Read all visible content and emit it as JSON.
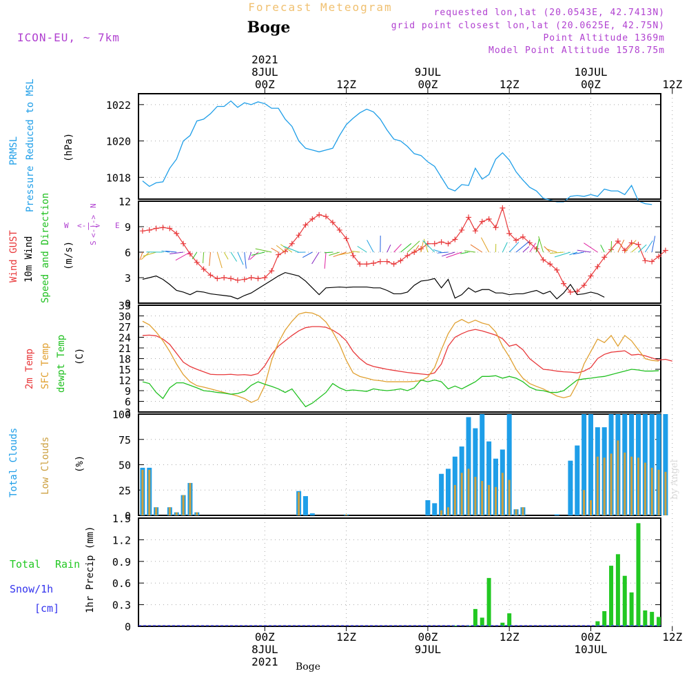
{
  "header": {
    "title": "Forecast Meteogram",
    "location": "Boge",
    "model": "ICON-EU, ~ 7km",
    "requested": "requested lon,lat (20.0543E, 42.7413N)",
    "grid_point": "grid point closest lon,lat (20.0625E, 42.75N)",
    "point_altitude": "Point Altitude 1369m",
    "model_altitude": "Model Point Altitude 1578.75m",
    "footer_location": "Boge",
    "watermark": "by Angel"
  },
  "time_axis": {
    "top_labels": [
      {
        "day": "8JUL",
        "hour": "00Z",
        "year": "2021",
        "t": 18
      },
      {
        "day": "",
        "hour": "12Z",
        "year": "",
        "t": 30
      },
      {
        "day": "9JUL",
        "hour": "00Z",
        "year": "",
        "t": 42
      },
      {
        "day": "",
        "hour": "12Z",
        "year": "",
        "t": 54
      },
      {
        "day": "10JUL",
        "hour": "00Z",
        "year": "",
        "t": 66
      },
      {
        "day": "",
        "hour": "12Z",
        "year": "",
        "t": 78
      }
    ],
    "bottom_labels": [
      {
        "hour": "00Z",
        "day": "8JUL",
        "year": "2021",
        "t": 18
      },
      {
        "hour": "12Z",
        "day": "",
        "year": "",
        "t": 30
      },
      {
        "hour": "00Z",
        "day": "9JUL",
        "year": "",
        "t": 42
      },
      {
        "hour": "12Z",
        "day": "",
        "year": "",
        "t": 54
      },
      {
        "hour": "00Z",
        "day": "10JUL",
        "year": "",
        "t": 66
      },
      {
        "hour": "12Z",
        "day": "",
        "year": "",
        "t": 78
      }
    ]
  },
  "panel_labels": {
    "pressure": {
      "l1": "PRMSL",
      "l2": "Pressure Reduced to MSL",
      "unit": "(hPa)"
    },
    "wind": {
      "l1": "Wind GUST",
      "l2": "10m Wind",
      "l3": "Speed and Direction",
      "unit": "(m/s)",
      "compass": {
        "n": "N",
        "s": "S",
        "w": "W",
        "e": "E",
        "arrow": "<-|->"
      }
    },
    "temp": {
      "l1": "2m Temp",
      "l2": "SFC Temp",
      "l3": "dewpt Temp",
      "unit": "(C)"
    },
    "clouds": {
      "l1": "Total Clouds",
      "l2": "Low Clouds",
      "unit": "(%)"
    },
    "precip": {
      "l1": "Total",
      "l1b": "Rain",
      "l2": "Snow/1h",
      "l3": "[cm]",
      "unit": "1hr Precip (mm)"
    }
  },
  "colors": {
    "pressure": "#1e9ee8",
    "gust": "#e8383a",
    "wind": "#000000",
    "temp2m": "#e8383a",
    "sfc": "#e0a030",
    "dew": "#20c020",
    "total_cloud": "#1e9ee8",
    "low_cloud": "#cca040",
    "rain": "#22c822",
    "snow": "#3333ee",
    "title": "#f0c070",
    "info": "#b040d0",
    "grid": "#a8a8a8"
  },
  "chart_data": [
    {
      "type": "line",
      "title": "PRMSL Pressure Reduced to MSL",
      "ylabel": "(hPa)",
      "ylim": [
        1016.8,
        1022.6
      ],
      "yticks": [
        1018,
        1020,
        1022
      ],
      "x_step_hours": 1,
      "x_start_hour": 0,
      "series": [
        {
          "name": "PRMSL",
          "values": [
            1017.8,
            1017.5,
            1017.7,
            1017.75,
            1018.5,
            1019.0,
            1020.0,
            1020.3,
            1021.1,
            1021.2,
            1021.5,
            1021.9,
            1021.9,
            1022.2,
            1021.85,
            1022.1,
            1022.0,
            1022.15,
            1022.05,
            1021.8,
            1021.8,
            1021.2,
            1020.8,
            1020.0,
            1019.6,
            1019.5,
            1019.4,
            1019.5,
            1019.6,
            1020.3,
            1020.9,
            1021.25,
            1021.55,
            1021.75,
            1021.6,
            1021.2,
            1020.6,
            1020.1,
            1020.0,
            1019.7,
            1019.3,
            1019.2,
            1018.85,
            1018.6,
            1018.0,
            1017.4,
            1017.25,
            1017.6,
            1017.55,
            1018.5,
            1017.9,
            1018.15,
            1019.0,
            1019.35,
            1018.95,
            1018.3,
            1017.85,
            1017.45,
            1017.25,
            1016.85,
            1016.75,
            1016.65,
            1016.65,
            1016.95,
            1017.0,
            1016.95,
            1017.05,
            1016.95,
            1017.35,
            1017.25,
            1017.25,
            1017.05,
            1017.55,
            1016.7,
            1016.55,
            1016.5
          ]
        }
      ]
    },
    {
      "type": "line",
      "title": "Wind GUST / 10m Wind Speed and Direction",
      "ylabel": "(m/s)",
      "ylim": [
        0,
        12
      ],
      "yticks": [
        0,
        3,
        6,
        9,
        12
      ],
      "series": [
        {
          "name": "Wind GUST",
          "values": [
            8.5,
            8.6,
            8.8,
            8.9,
            8.8,
            8.2,
            7.0,
            5.8,
            4.8,
            4.0,
            3.3,
            2.9,
            3.0,
            2.9,
            2.7,
            2.8,
            3.0,
            2.9,
            3.0,
            3.8,
            5.7,
            6.1,
            7.0,
            8.0,
            9.2,
            9.9,
            10.4,
            10.2,
            9.5,
            8.6,
            7.6,
            5.6,
            4.6,
            4.6,
            4.7,
            4.9,
            4.9,
            4.6,
            5.0,
            5.6,
            6.0,
            6.4,
            7.0,
            7.0,
            7.2,
            7.0,
            7.5,
            8.6,
            10.1,
            8.5,
            9.6,
            9.9,
            8.9,
            11.2,
            8.2,
            7.4,
            7.8,
            7.1,
            6.4,
            5.1,
            4.6,
            3.9,
            2.3,
            1.3,
            1.4,
            2.1,
            3.2,
            4.3,
            5.4,
            6.3,
            7.3,
            6.2,
            7.1,
            6.9,
            5.0,
            4.9,
            5.5,
            6.2
          ]
        },
        {
          "name": "10m Wind",
          "values": [
            2.8,
            3.0,
            3.2,
            2.8,
            2.2,
            1.5,
            1.3,
            1.0,
            1.4,
            1.3,
            1.1,
            1.0,
            0.9,
            0.8,
            0.5,
            0.9,
            1.2,
            1.7,
            2.2,
            2.7,
            3.2,
            3.6,
            3.4,
            3.2,
            2.6,
            1.8,
            1.0,
            1.8,
            1.85,
            1.9,
            1.85,
            1.9,
            1.9,
            1.9,
            1.8,
            1.8,
            1.5,
            1.1,
            1.1,
            1.3,
            2.1,
            2.6,
            2.7,
            2.9,
            1.8,
            2.8,
            0.6,
            1.0,
            1.8,
            1.3,
            1.6,
            1.6,
            1.2,
            1.2,
            1.0,
            1.1,
            1.1,
            1.3,
            1.5,
            1.1,
            1.4,
            0.5,
            1.2,
            2.2,
            1.0,
            1.1,
            1.3,
            1.1,
            0.7
          ]
        }
      ]
    },
    {
      "type": "line",
      "title": "2m Temp / SFC Temp / dewpt Temp",
      "ylabel": "(C)",
      "ylim": [
        3,
        33
      ],
      "yticks": [
        3,
        6,
        9,
        12,
        15,
        18,
        21,
        24,
        27,
        30,
        33
      ],
      "series": [
        {
          "name": "2m Temp",
          "values": [
            24.5,
            24.6,
            24.4,
            23.5,
            22.0,
            19.5,
            17.0,
            15.8,
            15.0,
            14.3,
            13.6,
            13.5,
            13.5,
            13.6,
            13.4,
            13.5,
            13.3,
            13.8,
            16.0,
            19.2,
            21.5,
            23.0,
            24.5,
            25.8,
            26.7,
            27.0,
            27.0,
            26.8,
            26.0,
            24.8,
            23.0,
            20.0,
            18.0,
            16.5,
            15.8,
            15.4,
            15.0,
            14.7,
            14.4,
            14.1,
            13.9,
            13.7,
            13.5,
            14.0,
            16.5,
            21.5,
            24.0,
            25.0,
            25.8,
            26.2,
            25.8,
            25.2,
            24.6,
            23.6,
            21.5,
            22.0,
            20.5,
            18.0,
            16.5,
            15.0,
            14.8,
            14.5,
            14.3,
            14.2,
            14.0,
            14.5,
            15.5,
            18.0,
            19.2,
            19.8,
            20.0,
            20.2,
            19.0,
            19.2,
            18.8,
            18.2,
            17.6,
            17.8,
            17.3
          ]
        },
        {
          "name": "SFC Temp",
          "values": [
            28.5,
            27.5,
            25.5,
            23.0,
            20.0,
            16.5,
            13.5,
            11.5,
            10.4,
            10.0,
            9.5,
            9.0,
            8.5,
            8.0,
            7.5,
            6.8,
            5.7,
            6.5,
            10.5,
            17.5,
            22.5,
            26.0,
            28.5,
            30.5,
            31.0,
            30.8,
            30.0,
            28.3,
            25.5,
            22.0,
            17.5,
            14.0,
            13.0,
            12.5,
            12.0,
            11.8,
            11.5,
            11.5,
            11.5,
            11.5,
            11.6,
            11.8,
            12.8,
            15.5,
            20.5,
            25.0,
            28.0,
            29.0,
            28.0,
            28.8,
            28.0,
            27.5,
            25.5,
            21.5,
            18.5,
            15.0,
            12.5,
            11.0,
            10.2,
            9.5,
            8.5,
            7.5,
            7.0,
            7.5,
            11.0,
            16.5,
            20.0,
            23.5,
            22.5,
            24.5,
            21.5,
            24.5,
            23.0,
            20.5,
            18.0,
            17.5,
            17.3
          ]
        },
        {
          "name": "dewpt Temp",
          "values": [
            11.5,
            11.0,
            8.5,
            6.8,
            9.8,
            11.2,
            11.2,
            10.5,
            9.8,
            9.0,
            8.8,
            8.5,
            8.3,
            8.0,
            8.2,
            8.8,
            10.5,
            11.5,
            10.8,
            10.2,
            9.5,
            8.5,
            9.5,
            7.0,
            4.5,
            5.5,
            7.0,
            8.5,
            11.0,
            9.8,
            9.0,
            9.2,
            9.0,
            8.8,
            9.5,
            9.2,
            9.0,
            9.2,
            9.5,
            9.0,
            9.8,
            12.0,
            11.5,
            12.0,
            11.5,
            9.5,
            10.3,
            9.5,
            10.5,
            11.5,
            13.0,
            13.0,
            13.2,
            12.5,
            13.0,
            12.5,
            11.5,
            10.0,
            9.2,
            9.0,
            8.5,
            8.5,
            9.0,
            10.5,
            12.0,
            12.3,
            12.5,
            12.8,
            13.0,
            13.5,
            14.0,
            14.5,
            15.0,
            14.8,
            14.5,
            14.5,
            14.6
          ]
        }
      ]
    },
    {
      "type": "bar",
      "title": "Total Clouds / Low Clouds",
      "ylabel": "(%)",
      "ylim": [
        0,
        100
      ],
      "yticks": [
        0,
        25,
        50,
        75,
        100
      ],
      "series": [
        {
          "name": "Total Clouds",
          "values": [
            47,
            47,
            8,
            0,
            8,
            3,
            20,
            32,
            3,
            0,
            0,
            0,
            0,
            0,
            0,
            0,
            0,
            0,
            0,
            0,
            0,
            0,
            0,
            24,
            19,
            2,
            0,
            0,
            0,
            0,
            1,
            0,
            0,
            0,
            0,
            0,
            0,
            0,
            0,
            0,
            0,
            0,
            15,
            12,
            41,
            46,
            58,
            68,
            97,
            86,
            100,
            73,
            56,
            65,
            100,
            6,
            8,
            0,
            0,
            0,
            0,
            1,
            0,
            54,
            69,
            100,
            100,
            87,
            87,
            100,
            100,
            100,
            100,
            100,
            100,
            100,
            100,
            100
          ]
        },
        {
          "name": "Low Clouds",
          "values": [
            45,
            45,
            8,
            0,
            8,
            3,
            20,
            32,
            3,
            0,
            0,
            0,
            0,
            0,
            0,
            0,
            0,
            0,
            0,
            0,
            0,
            0,
            0,
            23,
            0,
            0,
            0,
            0,
            0,
            0,
            1,
            0,
            0,
            0,
            0,
            0,
            0,
            0,
            0,
            0,
            0,
            0,
            0,
            0,
            5,
            8,
            30,
            42,
            46,
            38,
            34,
            30,
            28,
            42,
            35,
            6,
            8,
            0,
            0,
            0,
            0,
            0,
            0,
            0,
            0,
            25,
            15,
            58,
            57,
            61,
            74,
            62,
            58,
            57,
            52,
            47,
            45,
            43
          ]
        }
      ]
    },
    {
      "type": "bar",
      "title": "1hr Precip",
      "ylabel": "1hr Precip (mm)",
      "ylim": [
        0,
        1.5
      ],
      "yticks": [
        0,
        0.3,
        0.6,
        0.9,
        1.2,
        1.5
      ],
      "series": [
        {
          "name": "Total Rain",
          "values": [
            0,
            0,
            0,
            0,
            0,
            0,
            0,
            0,
            0,
            0,
            0,
            0,
            0,
            0,
            0,
            0,
            0,
            0,
            0,
            0,
            0,
            0,
            0,
            0,
            0,
            0,
            0,
            0,
            0,
            0,
            0,
            0,
            0,
            0,
            0,
            0,
            0,
            0,
            0,
            0,
            0,
            0,
            0,
            0,
            0,
            0,
            0.01,
            0,
            0.01,
            0.24,
            0.12,
            0.67,
            0,
            0.05,
            0.18,
            0,
            0,
            0,
            0,
            0,
            0,
            0,
            0,
            0,
            0,
            0,
            0,
            0.07,
            0.21,
            0.84,
            1.0,
            0.7,
            0.47,
            1.43,
            0.22,
            0.2,
            0.13
          ]
        },
        {
          "name": "Snow/1h",
          "values": [
            0,
            0,
            0,
            0,
            0,
            0,
            0,
            0,
            0,
            0,
            0,
            0,
            0,
            0,
            0,
            0,
            0,
            0,
            0,
            0,
            0,
            0,
            0,
            0,
            0,
            0,
            0,
            0,
            0,
            0,
            0,
            0,
            0,
            0,
            0,
            0,
            0,
            0,
            0,
            0,
            0,
            0,
            0,
            0,
            0,
            0,
            0,
            0,
            0,
            0,
            0,
            0,
            0,
            0,
            0,
            0,
            0,
            0,
            0,
            0,
            0,
            0,
            0,
            0,
            0,
            0,
            0,
            0,
            0,
            0,
            0,
            0,
            0,
            0,
            0,
            0,
            0,
            0
          ]
        }
      ]
    }
  ]
}
